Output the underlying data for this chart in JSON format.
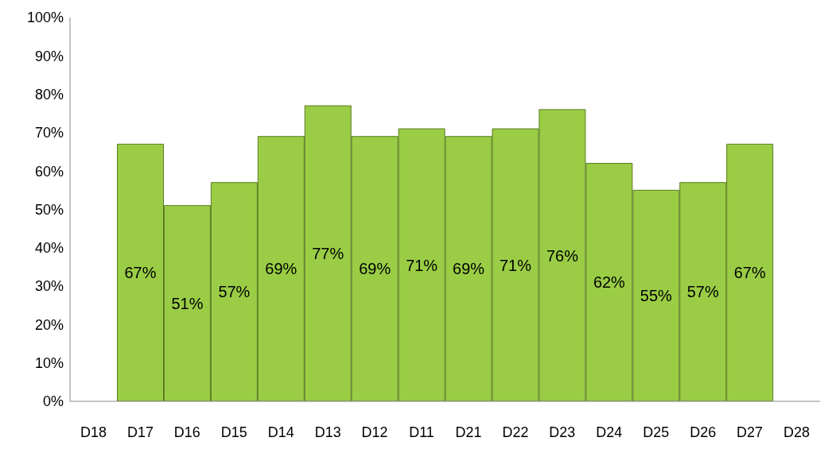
{
  "chart_data": {
    "type": "bar",
    "categories": [
      "D18",
      "D17",
      "D16",
      "D15",
      "D14",
      "D13",
      "D12",
      "D11",
      "D21",
      "D22",
      "D23",
      "D24",
      "D25",
      "D26",
      "D27",
      "D28"
    ],
    "values": [
      null,
      67,
      51,
      57,
      69,
      77,
      69,
      71,
      69,
      71,
      76,
      62,
      55,
      57,
      67,
      null
    ],
    "value_labels": [
      null,
      "67%",
      "51%",
      "57%",
      "69%",
      "77%",
      "69%",
      "71%",
      "69%",
      "71%",
      "76%",
      "62%",
      "55%",
      "57%",
      "67%",
      null
    ],
    "color": "#9acd45",
    "ylim": [
      0,
      100
    ],
    "yticks": [
      {
        "value": 0,
        "label": "0%"
      },
      {
        "value": 10,
        "label": "10%"
      },
      {
        "value": 20,
        "label": "20%"
      },
      {
        "value": 30,
        "label": "30%"
      },
      {
        "value": 40,
        "label": "40%"
      },
      {
        "value": 50,
        "label": "50%"
      },
      {
        "value": 60,
        "label": "60%"
      },
      {
        "value": 70,
        "label": "70%"
      },
      {
        "value": 80,
        "label": "80%"
      },
      {
        "value": 90,
        "label": "90%"
      },
      {
        "value": 100,
        "label": "100%"
      }
    ],
    "grid": false,
    "legend": false
  }
}
